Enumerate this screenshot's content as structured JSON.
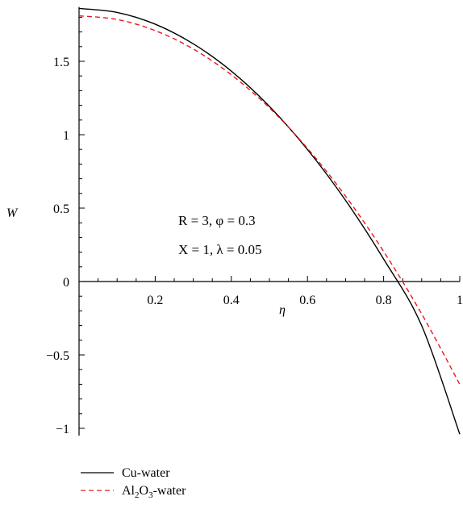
{
  "chart_data": {
    "type": "line",
    "ylabel": "W",
    "xlabel": "η",
    "xlim": [
      0,
      1
    ],
    "ylim": [
      -1.05,
      1.87
    ],
    "x_ticks": [
      0.2,
      0.4,
      0.6,
      0.8,
      1
    ],
    "x_tick_labels": [
      "0.2",
      "0.4",
      "0.6",
      "0.8",
      "1"
    ],
    "y_ticks": [
      -1,
      -0.5,
      0,
      0.5,
      1,
      1.5
    ],
    "y_tick_labels": [
      "−1",
      "−0.5",
      "0",
      "0.5",
      "1",
      "1.5"
    ],
    "annotation_lines": [
      {
        "id": "line1",
        "text": "R = 3, φ = 0.3"
      },
      {
        "id": "line2",
        "text": "X = 1, λ = 0.05"
      }
    ],
    "series": [
      {
        "name": "Cu-water",
        "color": "#000000",
        "dash": "solid",
        "x": [
          0,
          0.1,
          0.2,
          0.3,
          0.4,
          0.5,
          0.6,
          0.7,
          0.8,
          0.9,
          1.0
        ],
        "y": [
          1.86,
          1.833,
          1.753,
          1.619,
          1.433,
          1.193,
          0.899,
          0.553,
          0.153,
          -0.301,
          -1.04
        ]
      },
      {
        "name": "Al2O3-water",
        "color": "#e8191e",
        "dash": "dashed",
        "x": [
          0,
          0.1,
          0.2,
          0.3,
          0.4,
          0.5,
          0.6,
          0.7,
          0.8,
          0.9,
          1.0
        ],
        "y": [
          1.81,
          1.785,
          1.709,
          1.584,
          1.408,
          1.183,
          0.907,
          0.581,
          0.205,
          -0.221,
          -0.7
        ]
      }
    ],
    "legend": {
      "placement": "bottom-left",
      "entries": [
        {
          "series": "Cu-water",
          "label_main": "Cu-water"
        },
        {
          "series": "Al2O3-water",
          "label_parts": [
            "Al",
            "2",
            "O",
            "3",
            "-water"
          ]
        }
      ]
    }
  }
}
